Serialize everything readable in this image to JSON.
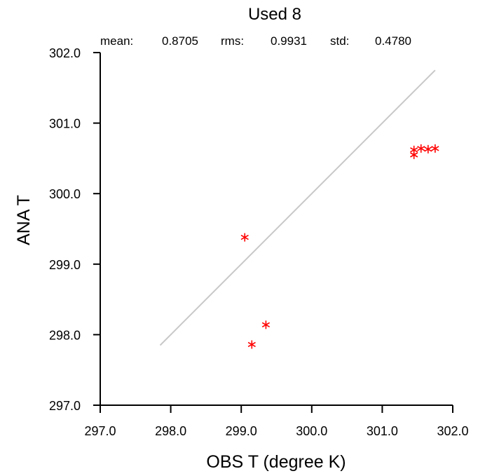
{
  "chart_data": {
    "type": "scatter",
    "title": "Used  8",
    "stats": {
      "mean_label": "mean:",
      "mean_value": "0.8705",
      "rms_label": "rms:",
      "rms_value": "0.9931",
      "std_label": "std:",
      "std_value": "0.4780"
    },
    "xlabel": "OBS T  (degree K)",
    "ylabel": "ANA T",
    "xlim": [
      297.0,
      302.0
    ],
    "ylim": [
      297.0,
      302.0
    ],
    "xticks": [
      "297.0",
      "298.0",
      "299.0",
      "300.0",
      "301.0",
      "302.0"
    ],
    "yticks": [
      "297.0",
      "298.0",
      "299.0",
      "300.0",
      "301.0",
      "302.0"
    ],
    "marker_color": "#ff0000",
    "line_color": "#c8c8c8",
    "reference_line": {
      "x": [
        297.85,
        301.75
      ],
      "y": [
        297.85,
        301.75
      ]
    },
    "series": [
      {
        "points": [
          {
            "x": 299.05,
            "y": 299.38
          },
          {
            "x": 299.15,
            "y": 297.86
          },
          {
            "x": 299.35,
            "y": 298.14
          },
          {
            "x": 301.45,
            "y": 300.62
          },
          {
            "x": 301.45,
            "y": 300.55
          },
          {
            "x": 301.55,
            "y": 300.64
          },
          {
            "x": 301.65,
            "y": 300.63
          },
          {
            "x": 301.75,
            "y": 300.64
          }
        ]
      }
    ]
  }
}
